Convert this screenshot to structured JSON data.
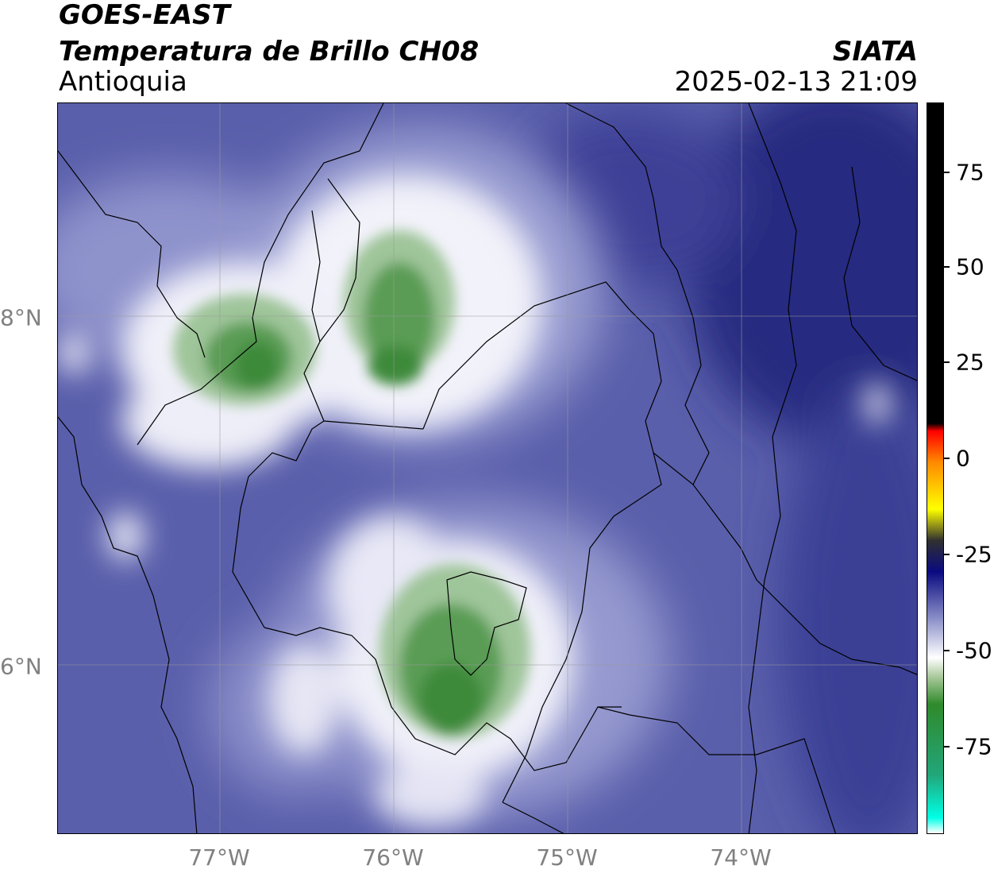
{
  "header": {
    "satellite": "GOES-EAST",
    "product": "Temperatura de Brillo CH08",
    "region": "Antioquia",
    "agency": "SIATA",
    "datetime": "2025-02-13 21:09"
  },
  "map": {
    "lon_ticks": [
      "77°W",
      "76°W",
      "75°W",
      "74°W"
    ],
    "lat_ticks": [
      "8°N",
      "6°N"
    ],
    "extent": {
      "lon": [
        -77.94,
        -73.0
      ],
      "lat": [
        5.04,
        9.24
      ]
    },
    "colors": {
      "background_blue": "#5a5fab",
      "deep_blue": "#1f2379",
      "white_cloud": "#f4f4fb",
      "green_cold": "#3d8a3a"
    }
  },
  "colorbar": {
    "range": [
      -95,
      92
    ],
    "tick_labels": [
      "75",
      "50",
      "25",
      "0",
      "-25",
      "-50",
      "-75"
    ],
    "tick_values": [
      75,
      50,
      25,
      0,
      -25,
      -50,
      -75
    ],
    "stops": [
      {
        "v": -95,
        "c": "#ffffff"
      },
      {
        "v": -91,
        "c": "#00ffe6"
      },
      {
        "v": -80,
        "c": "#22a67a"
      },
      {
        "v": -62,
        "c": "#2f8a2b"
      },
      {
        "v": -55,
        "c": "#a8c89a"
      },
      {
        "v": -50,
        "c": "#ffffff"
      },
      {
        "v": -40,
        "c": "#8a8fc8"
      },
      {
        "v": -28,
        "c": "#0a0a80"
      },
      {
        "v": -20,
        "c": "#303030"
      },
      {
        "v": -12,
        "c": "#ffff00"
      },
      {
        "v": 0,
        "c": "#ff8a00"
      },
      {
        "v": 8,
        "c": "#ff0000"
      },
      {
        "v": 10,
        "c": "#000000"
      },
      {
        "v": 92,
        "c": "#000000"
      }
    ]
  }
}
